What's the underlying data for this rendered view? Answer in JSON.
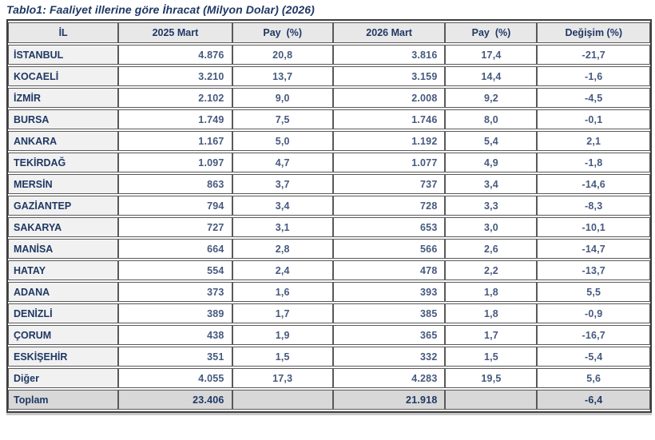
{
  "title": "Tablo1: Faaliyet illerine göre İhracat (Milyon Dolar) (2026)",
  "table": {
    "columns": [
      "İL",
      "2025 Mart",
      "Pay  (%)",
      "2026 Mart",
      "Pay  (%)",
      "Değişim (%)"
    ],
    "rows": [
      [
        "İSTANBUL",
        "4.876",
        "20,8",
        "3.816",
        "17,4",
        "-21,7"
      ],
      [
        "KOCAELİ",
        "3.210",
        "13,7",
        "3.159",
        "14,4",
        "-1,6"
      ],
      [
        "İZMİR",
        "2.102",
        "9,0",
        "2.008",
        "9,2",
        "-4,5"
      ],
      [
        "BURSA",
        "1.749",
        "7,5",
        "1.746",
        "8,0",
        "-0,1"
      ],
      [
        "ANKARA",
        "1.167",
        "5,0",
        "1.192",
        "5,4",
        "2,1"
      ],
      [
        "TEKİRDAĞ",
        "1.097",
        "4,7",
        "1.077",
        "4,9",
        "-1,8"
      ],
      [
        "MERSİN",
        "863",
        "3,7",
        "737",
        "3,4",
        "-14,6"
      ],
      [
        "GAZİANTEP",
        "794",
        "3,4",
        "728",
        "3,3",
        "-8,3"
      ],
      [
        "SAKARYA",
        "727",
        "3,1",
        "653",
        "3,0",
        "-10,1"
      ],
      [
        "MANİSA",
        "664",
        "2,8",
        "566",
        "2,6",
        "-14,7"
      ],
      [
        "HATAY",
        "554",
        "2,4",
        "478",
        "2,2",
        "-13,7"
      ],
      [
        "ADANA",
        "373",
        "1,6",
        "393",
        "1,8",
        "5,5"
      ],
      [
        "DENİZLİ",
        "389",
        "1,7",
        "385",
        "1,8",
        "-0,9"
      ],
      [
        "ÇORUM",
        "438",
        "1,9",
        "365",
        "1,7",
        "-16,7"
      ],
      [
        "ESKİŞEHİR",
        "351",
        "1,5",
        "332",
        "1,5",
        "-5,4"
      ],
      [
        "Diğer",
        "4.055",
        "17,3",
        "4.283",
        "19,5",
        "5,6"
      ]
    ],
    "footer": [
      "Toplam",
      "23.406",
      "",
      "21.918",
      "",
      "-6,4"
    ]
  },
  "colors": {
    "title_text": "#1f3864",
    "header_bg": "#e8e8e8",
    "header_text": "#1f3864",
    "row_label_bg": "#f1f1f1",
    "row_label_text": "#1f3864",
    "value_text": "#46597e",
    "footer_bg": "#d8d8d8",
    "border": "#595959",
    "outer_border": "#3d3d3d"
  }
}
